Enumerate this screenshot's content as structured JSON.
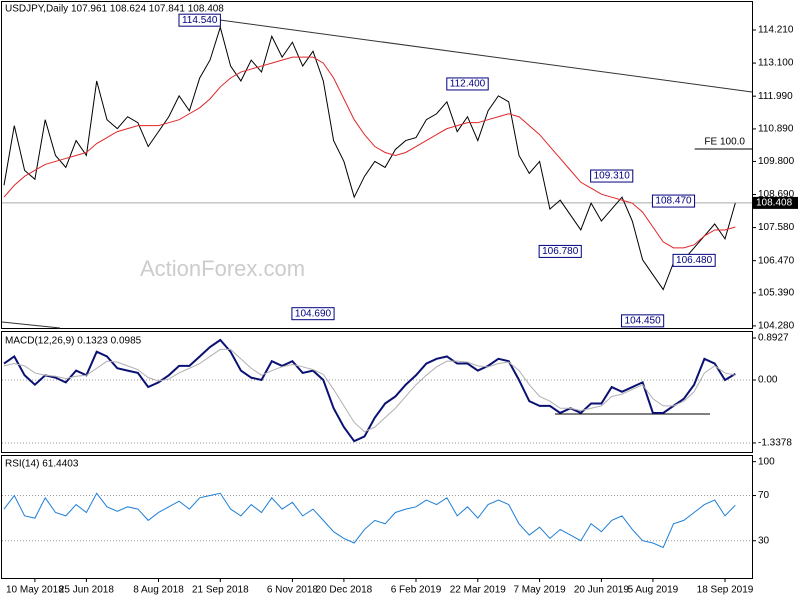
{
  "chart_data": [
    {
      "type": "line",
      "title": "USDJPY,Daily 107.961 108.624 107.841 108.408",
      "watermark": "ActionForex.com",
      "categories": [
        null,
        null,
        null,
        "10 May 2018",
        null,
        null,
        null,
        null,
        "25 Jun 2018",
        null,
        null,
        null,
        null,
        null,
        null,
        "8 Aug 2018",
        null,
        null,
        null,
        null,
        null,
        "21 Sep 2018",
        null,
        null,
        null,
        null,
        null,
        null,
        "6 Nov 2018",
        null,
        null,
        null,
        null,
        "20 Dec 2018",
        null,
        null,
        null,
        null,
        null,
        null,
        "6 Feb 2019",
        null,
        null,
        null,
        null,
        null,
        "22 Mar 2019",
        null,
        null,
        null,
        null,
        null,
        "7 May 2019",
        null,
        null,
        null,
        null,
        null,
        "20 Jun 2019",
        null,
        null,
        null,
        null,
        "5 Aug 2019",
        null,
        null,
        null,
        null,
        null,
        null,
        "18 Sep 2019",
        null
      ],
      "series": [
        {
          "color": "#000000",
          "values": [
            109.0,
            111.0,
            109.5,
            109.2,
            111.2,
            110.0,
            109.6,
            110.5,
            110.0,
            112.5,
            111.2,
            110.9,
            111.3,
            111.1,
            110.3,
            110.8,
            111.3,
            112.0,
            111.5,
            112.6,
            113.2,
            114.3,
            113.0,
            112.5,
            113.2,
            112.8,
            114.0,
            113.3,
            113.8,
            113.0,
            113.5,
            112.5,
            110.5,
            109.8,
            108.6,
            109.3,
            109.8,
            109.6,
            110.2,
            110.5,
            110.6,
            111.2,
            111.4,
            111.8,
            110.8,
            111.3,
            110.5,
            111.5,
            112.0,
            111.8,
            110.0,
            109.4,
            109.8,
            108.2,
            108.5,
            108.0,
            107.5,
            108.4,
            107.8,
            108.2,
            108.6,
            107.8,
            106.5,
            106.0,
            105.5,
            106.4,
            106.5,
            106.9,
            107.3,
            107.7,
            107.2,
            108.4
          ]
        },
        {
          "color": "#e0262a",
          "values": [
            108.6,
            109.0,
            109.3,
            109.5,
            109.7,
            109.8,
            109.9,
            110.0,
            110.1,
            110.4,
            110.6,
            110.8,
            110.9,
            111.0,
            111.0,
            111.0,
            111.1,
            111.2,
            111.4,
            111.6,
            111.9,
            112.3,
            112.6,
            112.8,
            112.9,
            113.0,
            113.1,
            113.2,
            113.3,
            113.3,
            113.3,
            113.1,
            112.6,
            111.9,
            111.2,
            110.7,
            110.3,
            110.1,
            110.0,
            110.1,
            110.3,
            110.5,
            110.7,
            110.9,
            111.0,
            111.1,
            111.1,
            111.2,
            111.3,
            111.4,
            111.3,
            111.0,
            110.7,
            110.3,
            109.9,
            109.5,
            109.1,
            108.9,
            108.7,
            108.6,
            108.5,
            108.4,
            108.1,
            107.6,
            107.1,
            106.9,
            106.9,
            107.0,
            107.3,
            107.5,
            107.5,
            107.6
          ]
        }
      ],
      "ylim": [
        104.21,
        115.15
      ],
      "yticks": [
        {
          "value": 104.28,
          "label": "104.280"
        },
        {
          "value": 105.39,
          "label": "105.390"
        },
        {
          "value": 106.47,
          "label": "106.470"
        },
        {
          "value": 107.58,
          "label": "107.580"
        },
        {
          "value": 108.69,
          "label": "108.690"
        },
        {
          "value": 109.8,
          "label": "109.800"
        },
        {
          "value": 110.89,
          "label": "110.890"
        },
        {
          "value": 111.99,
          "label": "111.990"
        },
        {
          "value": 113.1,
          "label": "113.100"
        },
        {
          "value": 114.21,
          "label": "114.210"
        }
      ],
      "last_price": 108.408,
      "annotations": [
        {
          "x": 19,
          "value": 114.54,
          "label": "114.540"
        },
        {
          "x": 30,
          "value": 104.69,
          "label": "104.690"
        },
        {
          "x": 45,
          "value": 112.4,
          "label": "112.400"
        },
        {
          "x": 59,
          "value": 109.31,
          "label": "109.310"
        },
        {
          "x": 54,
          "value": 106.78,
          "label": "106.780"
        },
        {
          "x": 65,
          "value": 108.47,
          "label": "108.470"
        },
        {
          "x": 67,
          "value": 106.48,
          "label": "106.480"
        },
        {
          "x": 62,
          "value": 104.45,
          "label": "104.450"
        },
        {
          "x": 69,
          "value": 110.45,
          "label": "FE 100.0"
        }
      ],
      "grid": false
    },
    {
      "type": "line",
      "title": "MACD(12,26,9) 0.1323 0.0985",
      "series": [
        {
          "color": "#0a1172",
          "values": [
            0.35,
            0.5,
            0.1,
            -0.1,
            0.1,
            0.05,
            -0.05,
            0.2,
            0.1,
            0.6,
            0.5,
            0.25,
            0.2,
            0.15,
            -0.15,
            -0.05,
            0.1,
            0.3,
            0.3,
            0.5,
            0.7,
            0.85,
            0.6,
            0.2,
            0.05,
            0.0,
            0.4,
            0.3,
            0.4,
            0.15,
            0.2,
            0.0,
            -0.6,
            -1.0,
            -1.3,
            -1.2,
            -0.8,
            -0.5,
            -0.35,
            -0.1,
            0.1,
            0.35,
            0.45,
            0.5,
            0.35,
            0.35,
            0.2,
            0.3,
            0.45,
            0.4,
            0.0,
            -0.45,
            -0.55,
            -0.55,
            -0.7,
            -0.6,
            -0.7,
            -0.5,
            -0.5,
            -0.15,
            -0.25,
            -0.15,
            -0.05,
            -0.7,
            -0.7,
            -0.55,
            -0.4,
            -0.1,
            0.45,
            0.35,
            0.0,
            0.13
          ]
        },
        {
          "color": "#b0b0b0",
          "values": [
            0.3,
            0.35,
            0.3,
            0.15,
            0.1,
            0.08,
            0.03,
            0.08,
            0.1,
            0.25,
            0.4,
            0.38,
            0.3,
            0.22,
            0.05,
            -0.02,
            0.02,
            0.15,
            0.25,
            0.35,
            0.5,
            0.65,
            0.65,
            0.45,
            0.25,
            0.1,
            0.2,
            0.28,
            0.33,
            0.28,
            0.22,
            0.12,
            -0.2,
            -0.55,
            -0.9,
            -1.1,
            -1.0,
            -0.8,
            -0.6,
            -0.35,
            -0.1,
            0.1,
            0.28,
            0.4,
            0.4,
            0.38,
            0.3,
            0.28,
            0.35,
            0.38,
            0.2,
            -0.1,
            -0.35,
            -0.45,
            -0.6,
            -0.6,
            -0.65,
            -0.6,
            -0.55,
            -0.35,
            -0.3,
            -0.2,
            -0.1,
            -0.4,
            -0.55,
            -0.55,
            -0.45,
            -0.25,
            0.15,
            0.3,
            0.15,
            0.1
          ]
        }
      ],
      "ylim": [
        -1.53,
        1.02
      ],
      "yticks": [
        0.8927,
        {
          "value": 0,
          "label": "0.00"
        },
        -1.3378
      ],
      "grid": true
    },
    {
      "type": "line",
      "title": "RSI(14) 61.4403",
      "series": [
        {
          "color": "#1e7fd6",
          "values": [
            58,
            70,
            52,
            50,
            68,
            55,
            52,
            62,
            55,
            72,
            60,
            56,
            60,
            58,
            48,
            55,
            60,
            65,
            58,
            68,
            70,
            72,
            58,
            52,
            62,
            55,
            68,
            58,
            64,
            52,
            58,
            48,
            38,
            32,
            28,
            40,
            48,
            45,
            55,
            58,
            60,
            66,
            62,
            68,
            52,
            60,
            50,
            62,
            66,
            62,
            45,
            35,
            42,
            32,
            40,
            35,
            30,
            45,
            38,
            48,
            52,
            40,
            30,
            28,
            24,
            45,
            48,
            55,
            62,
            66,
            52,
            61.4403
          ]
        }
      ],
      "ylim": [
        -3,
        105
      ],
      "yticks": [
        30,
        70,
        100
      ],
      "grid": true
    }
  ]
}
